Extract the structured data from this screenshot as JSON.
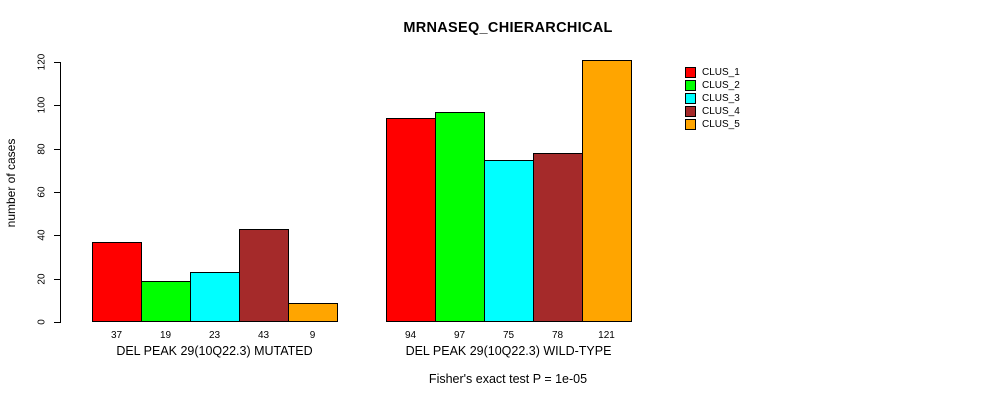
{
  "chart_data": {
    "type": "bar",
    "title": "MRNASEQ_CHIERARCHICAL",
    "ylabel": "number of cases",
    "xlabel": "",
    "ylim": [
      0,
      120
    ],
    "yticks": [
      0,
      20,
      40,
      60,
      80,
      100,
      120
    ],
    "grid": false,
    "legend_position": "right",
    "bar_value_labels": true,
    "categories": [
      "DEL PEAK 29(10Q22.3) MUTATED",
      "DEL PEAK 29(10Q22.3) WILD-TYPE"
    ],
    "series": [
      {
        "name": "CLUS_1",
        "color": "#ff0000",
        "values": [
          37,
          94
        ]
      },
      {
        "name": "CLUS_2",
        "color": "#00ff00",
        "values": [
          19,
          97
        ]
      },
      {
        "name": "CLUS_3",
        "color": "#00ffff",
        "values": [
          23,
          75
        ]
      },
      {
        "name": "CLUS_4",
        "color": "#a52a2a",
        "values": [
          43,
          78
        ]
      },
      {
        "name": "CLUS_5",
        "color": "#ffa500",
        "values": [
          9,
          121
        ]
      }
    ],
    "annotation": "Fisher's exact test P = 1e-05"
  }
}
